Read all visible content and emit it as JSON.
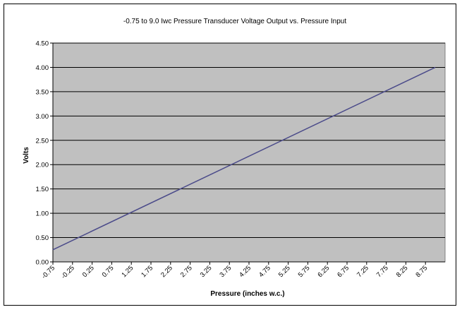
{
  "chart_data": {
    "type": "line",
    "title": "-0.75 to 9.0 Iwc Pressure Transducer Voltage Output vs. Pressure Input",
    "xlabel": "Pressure (inches w.c.)",
    "ylabel": "Volts",
    "xlim": [
      -0.75,
      9.25
    ],
    "ylim": [
      0,
      4.5
    ],
    "x_ticks": [
      "-0.75",
      "-0.25",
      "0.25",
      "0.75",
      "1.25",
      "1.75",
      "2.25",
      "2.75",
      "3.25",
      "3.75",
      "4.25",
      "4.75",
      "5.25",
      "5.75",
      "6.25",
      "6.75",
      "7.25",
      "7.75",
      "8.25",
      "8.75"
    ],
    "y_ticks": [
      "0.00",
      "0.50",
      "1.00",
      "1.50",
      "2.00",
      "2.50",
      "3.00",
      "3.50",
      "4.00",
      "4.50"
    ],
    "grid": "horizontal",
    "legend": "none",
    "series": [
      {
        "x": [
          -0.75,
          9.0
        ],
        "y": [
          0.25,
          4.0
        ]
      }
    ],
    "colors": {
      "plot_background": "#c0c0c0",
      "line": "#4b4b8a",
      "grid": "#000000"
    }
  }
}
